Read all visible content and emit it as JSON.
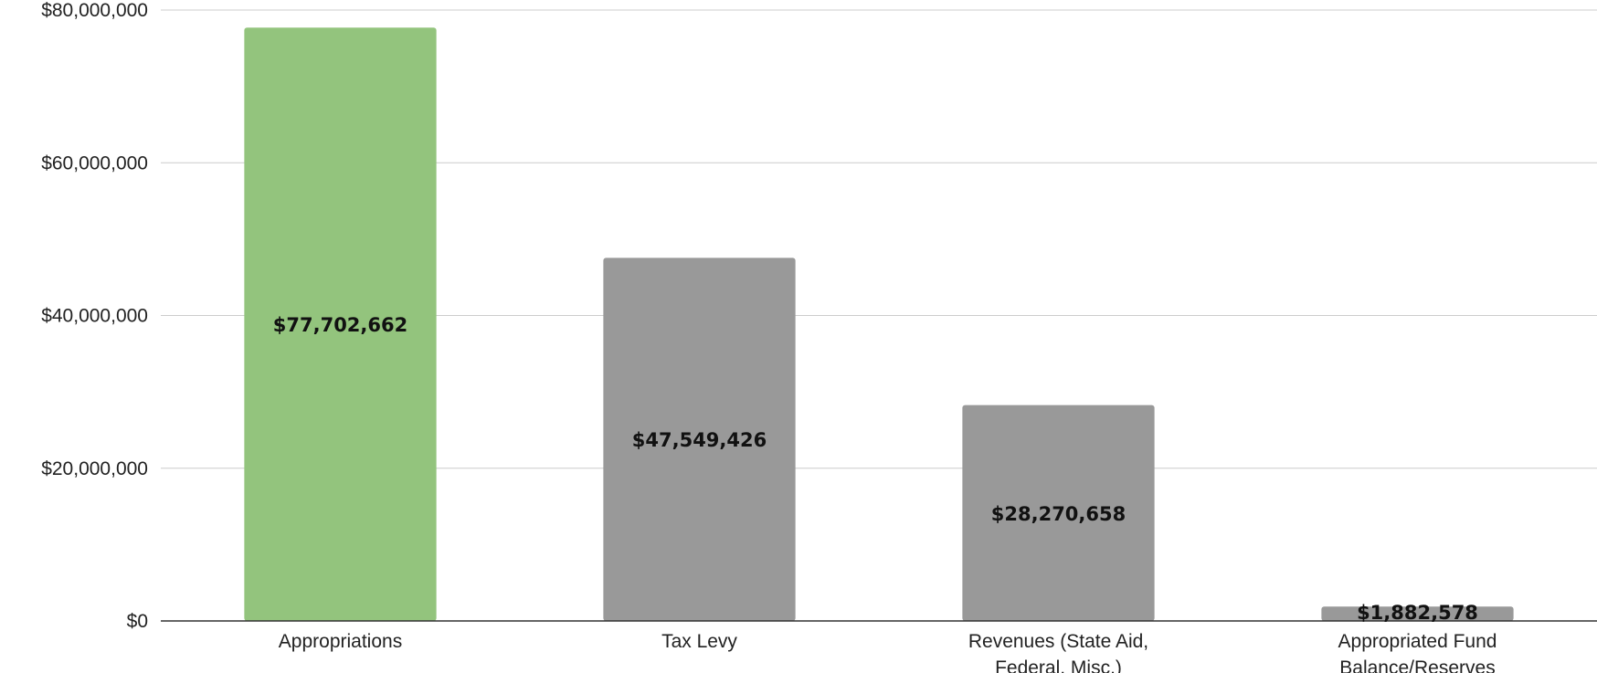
{
  "chart_data": {
    "type": "bar",
    "title": "",
    "xlabel": "",
    "ylabel": "",
    "ylim": [
      0,
      80000000
    ],
    "yticks": [
      0,
      20000000,
      40000000,
      60000000,
      80000000
    ],
    "ytick_labels": [
      "$0",
      "$20,000,000",
      "$40,000,000",
      "$60,000,000",
      "$80,000,000"
    ],
    "grid": true,
    "legend": "none",
    "categories": [
      [
        "Appropriations"
      ],
      [
        "Tax Levy"
      ],
      [
        "Revenues (State Aid,",
        "Federal, Misc.)"
      ],
      [
        "Appropriated Fund",
        "Balance/Reserves"
      ]
    ],
    "values": [
      77702662,
      47549426,
      28270658,
      1882578
    ],
    "data_labels": [
      "$77,702,662",
      "$47,549,426",
      "$28,270,658",
      "$1,882,578"
    ],
    "colors": [
      "#93c47d",
      "#999999",
      "#999999",
      "#999999"
    ]
  }
}
